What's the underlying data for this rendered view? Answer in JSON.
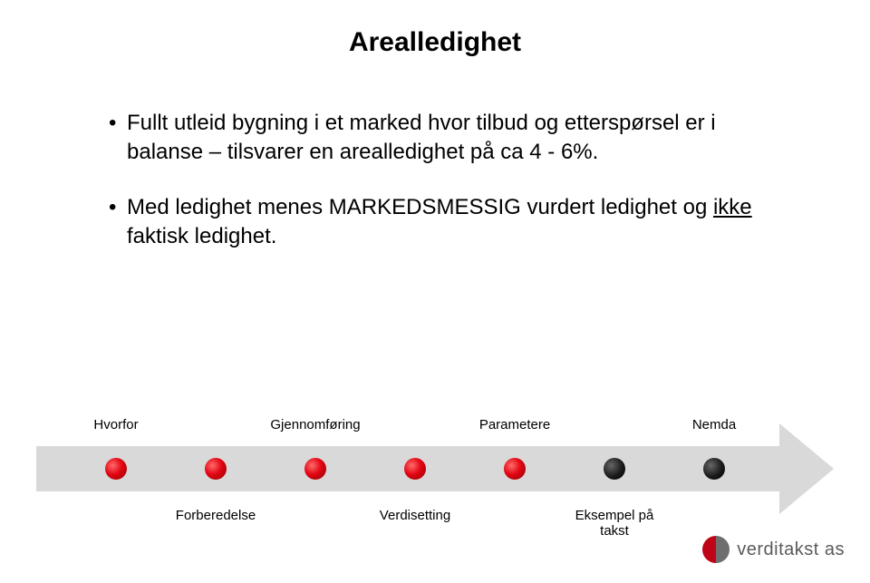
{
  "title": "Arealledighet",
  "bullets": [
    {
      "text": "Fullt utleid bygning i et marked hvor tilbud og etterspørsel er i balanse – tilsvarer en arealledighet på ca 4 - 6%."
    },
    {
      "html": "Med ledighet menes MARKEDSMESSIG vurdert ledighet og <u>ikke</u> faktisk ledighet."
    }
  ],
  "timeline": {
    "arrow_color": "#d9d9d9",
    "marker_colors": {
      "red": "#e30613",
      "black": "#000000"
    },
    "markers": [
      {
        "x_pct": 10.0,
        "color": "red",
        "top_label": "Hvorfor",
        "bottom_label": ""
      },
      {
        "x_pct": 22.5,
        "color": "red",
        "top_label": "",
        "bottom_label": "Forberedelse"
      },
      {
        "x_pct": 35.0,
        "color": "red",
        "top_label": "Gjennomføring",
        "bottom_label": ""
      },
      {
        "x_pct": 47.5,
        "color": "red",
        "top_label": "",
        "bottom_label": "Verdisetting"
      },
      {
        "x_pct": 60.0,
        "color": "red",
        "top_label": "Parametere",
        "bottom_label": ""
      },
      {
        "x_pct": 72.5,
        "color": "black",
        "top_label": "",
        "bottom_label": "Eksempel på\ntakst"
      },
      {
        "x_pct": 85.0,
        "color": "black",
        "top_label": "Nemda",
        "bottom_label": ""
      }
    ]
  },
  "logo": {
    "brand": "verditakst",
    "suffix": " as",
    "left_color": "#c00418",
    "right_color": "#6e6e6e"
  }
}
